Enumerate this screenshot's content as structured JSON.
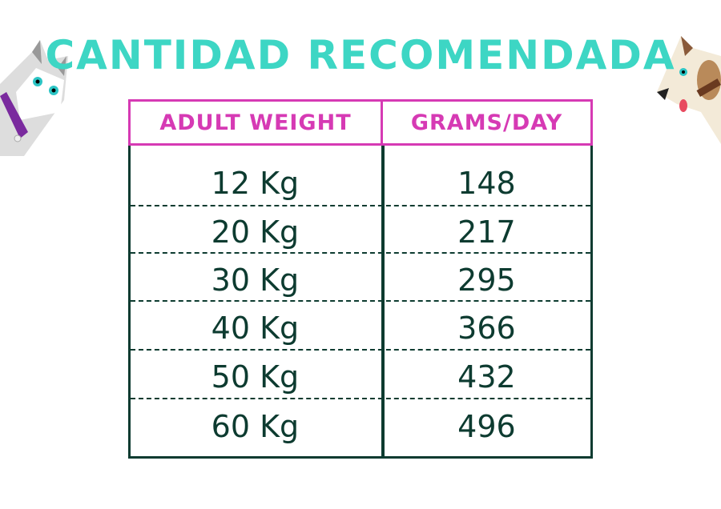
{
  "title": "CANTIDAD RECOMENDADA",
  "table": {
    "headers": [
      "ADULT WEIGHT",
      "GRAMS/DAY"
    ],
    "rows": [
      {
        "weight": "12 Kg",
        "grams": "148"
      },
      {
        "weight": "20 Kg",
        "grams": "217"
      },
      {
        "weight": "30 Kg",
        "grams": "295"
      },
      {
        "weight": "40 Kg",
        "grams": "366"
      },
      {
        "weight": "50 Kg",
        "grams": "432"
      },
      {
        "weight": "60 Kg",
        "grams": "496"
      }
    ]
  },
  "colors": {
    "title": "#3dd6c4",
    "header": "#d63ab4",
    "body": "#0d3b30"
  },
  "icons": [
    "cat-illustration",
    "dog-illustration"
  ]
}
